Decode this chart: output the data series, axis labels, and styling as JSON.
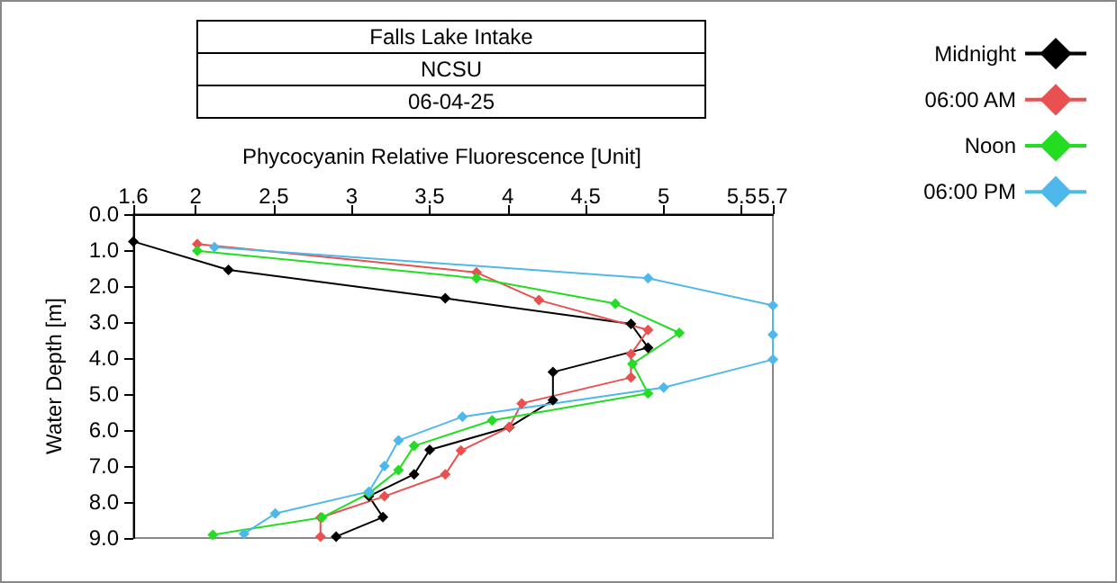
{
  "chart_data": {
    "type": "line",
    "title": "Falls Lake Intake",
    "subtitle": "NCSU",
    "annotations": [
      "06-04-25"
    ],
    "xlabel": "Phycocyanin Relative Fluorescence [Unit]",
    "ylabel": "Water Depth [m]",
    "xlim": [
      1.6,
      5.7
    ],
    "xticks": [
      1.6,
      2,
      2.5,
      3,
      3.5,
      4,
      4.5,
      5,
      5.5,
      5.7
    ],
    "ylim": [
      9,
      0
    ],
    "yticks": [
      {
        "value": 0,
        "label": "0.0"
      },
      {
        "value": 1,
        "label": "1.0"
      },
      {
        "value": 2,
        "label": "2.0"
      },
      {
        "value": 3,
        "label": "3.0"
      },
      {
        "value": 4,
        "label": "4.0"
      },
      {
        "value": 5,
        "label": "5.0"
      },
      {
        "value": 6,
        "label": "6.0"
      },
      {
        "value": 7,
        "label": "7.0"
      },
      {
        "value": 8,
        "label": "8.0"
      },
      {
        "value": 9,
        "label": "9.0"
      }
    ],
    "grid": false,
    "legend": "top right",
    "marker": "diamond",
    "line_style": "solid",
    "series": [
      {
        "name": "Midnight",
        "color": "#000000",
        "x": [
          1.6,
          2.21,
          3.6,
          4.79,
          4.9,
          4.29,
          4.29,
          4.01,
          3.5,
          3.4,
          3.11,
          3.2,
          2.9
        ],
        "values": [
          0.76,
          1.55,
          2.34,
          3.05,
          3.71,
          4.39,
          5.17,
          5.92,
          6.55,
          7.23,
          7.84,
          8.42,
          8.96
        ]
      },
      {
        "name": "06:00 AM",
        "color": "#e8514f",
        "x": [
          2.01,
          3.8,
          4.2,
          4.9,
          4.79,
          4.79,
          4.09,
          4.01,
          3.7,
          3.6,
          3.21,
          2.8,
          2.8
        ],
        "values": [
          0.83,
          1.62,
          2.39,
          3.22,
          3.89,
          4.54,
          5.26,
          5.92,
          6.57,
          7.23,
          7.84,
          8.43,
          8.96
        ]
      },
      {
        "name": "Noon",
        "color": "#22dd22",
        "x": [
          2.01,
          3.8,
          4.69,
          5.1,
          4.8,
          4.9,
          3.9,
          3.4,
          3.3,
          3.11,
          2.81,
          2.11
        ],
        "values": [
          1.02,
          1.78,
          2.49,
          3.3,
          4.16,
          4.98,
          5.73,
          6.44,
          7.11,
          7.76,
          8.43,
          8.91
        ]
      },
      {
        "name": "06:00 PM",
        "color": "#4fb8ea",
        "x": [
          2.12,
          4.9,
          5.7,
          5.7,
          5.7,
          5.0,
          3.71,
          3.3,
          3.21,
          3.11,
          2.51,
          2.31
        ],
        "values": [
          0.92,
          1.78,
          2.54,
          3.35,
          4.04,
          4.82,
          5.63,
          6.29,
          7.0,
          7.71,
          8.32,
          8.88
        ]
      }
    ]
  }
}
